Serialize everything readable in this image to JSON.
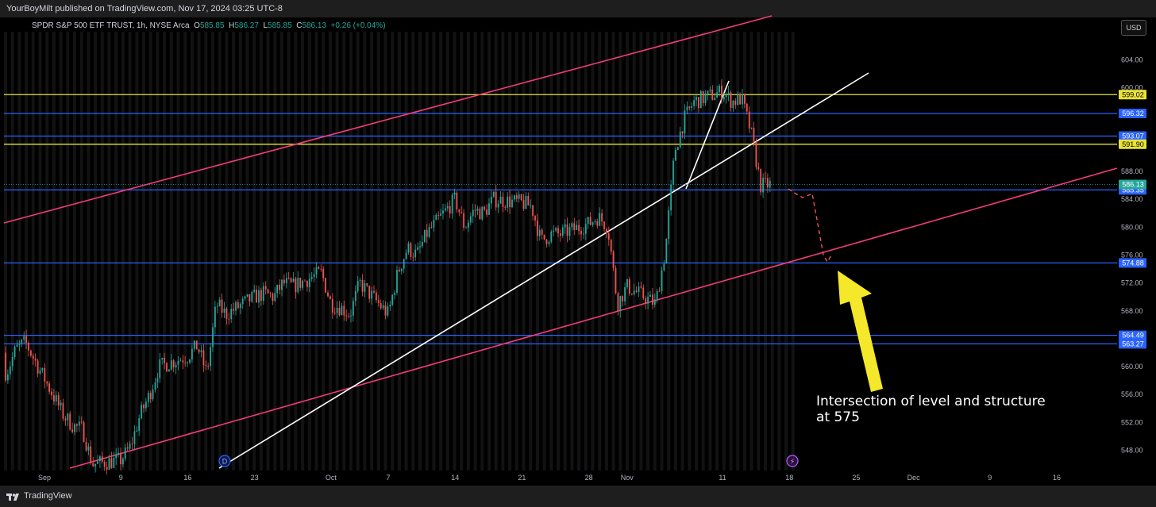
{
  "header": {
    "publisher_text": "YourBoyMilt published on TradingView.com, Nov 17, 2024 03:25 UTC-8"
  },
  "legend": {
    "symbol": "SPDR S&P 500 ETF TRUST, 1h, NYSE Arca",
    "open_label": "O",
    "open": "585.85",
    "high_label": "H",
    "high": "586.27",
    "low_label": "L",
    "low": "585.85",
    "close_label": "C",
    "close": "586.13",
    "change": "+0.26 (+0.04%)"
  },
  "currency_button": "USD",
  "footer": {
    "brand": "TradingView"
  },
  "badges": {
    "dividend": "D",
    "event": "⚡"
  },
  "colors": {
    "background": "#000000",
    "up": "#26a69a",
    "down": "#ef5350",
    "blue_level": "#2962ff",
    "yellow_level": "#e8e337",
    "channel": "#f23c78",
    "trendline": "#ffffff",
    "arrow": "#f5e82a",
    "projection": "#ef5350"
  },
  "chart_data": {
    "type": "candlestick",
    "symbol": "SPY",
    "timeframe": "1h",
    "y_ticks": [
      "548.00",
      "552.00",
      "556.00",
      "560.00",
      "564.00",
      "568.00",
      "572.00",
      "576.00",
      "580.00",
      "584.00",
      "588.00",
      "592.00",
      "596.00",
      "600.00",
      "604.00"
    ],
    "ylim": [
      545.5,
      607.8
    ],
    "x_ticks": [
      {
        "label": "Sep",
        "date": "2024-09-01"
      },
      {
        "label": "9",
        "date": "2024-09-09"
      },
      {
        "label": "16",
        "date": "2024-09-16"
      },
      {
        "label": "23",
        "date": "2024-09-23"
      },
      {
        "label": "Oct",
        "date": "2024-10-01"
      },
      {
        "label": "7",
        "date": "2024-10-07"
      },
      {
        "label": "14",
        "date": "2024-10-14"
      },
      {
        "label": "21",
        "date": "2024-10-21"
      },
      {
        "label": "28",
        "date": "2024-10-28"
      },
      {
        "label": "Nov",
        "date": "2024-11-01"
      },
      {
        "label": "11",
        "date": "2024-11-11"
      },
      {
        "label": "18",
        "date": "2024-11-18"
      },
      {
        "label": "25",
        "date": "2024-11-25"
      },
      {
        "label": "Dec",
        "date": "2024-12-01"
      },
      {
        "label": "9",
        "date": "2024-12-09"
      },
      {
        "label": "16",
        "date": "2024-12-16"
      }
    ],
    "price_path": [
      [
        "2024-08-27",
        562.0
      ],
      [
        "2024-08-28",
        559.0
      ],
      [
        "2024-08-29",
        562.5
      ],
      [
        "2024-08-30",
        563.5
      ],
      [
        "2024-09-03",
        553.0
      ],
      [
        "2024-09-04",
        551.5
      ],
      [
        "2024-09-05",
        551.0
      ],
      [
        "2024-09-06",
        546.0
      ],
      [
        "2024-09-09",
        546.6
      ],
      [
        "2024-09-10",
        548.5
      ],
      [
        "2024-09-11",
        553.0
      ],
      [
        "2024-09-12",
        556.0
      ],
      [
        "2024-09-13",
        560.0
      ],
      [
        "2024-09-16",
        561.5
      ],
      [
        "2024-09-17",
        563.0
      ],
      [
        "2024-09-18",
        559.0
      ],
      [
        "2024-09-19",
        569.0
      ],
      [
        "2024-09-20",
        567.5
      ],
      [
        "2024-09-23",
        570.0
      ],
      [
        "2024-09-24",
        570.5
      ],
      [
        "2024-09-25",
        570.0
      ],
      [
        "2024-09-26",
        572.0
      ],
      [
        "2024-09-27",
        571.5
      ],
      [
        "2024-09-30",
        573.5
      ],
      [
        "2024-10-01",
        569.0
      ],
      [
        "2024-10-02",
        568.5
      ],
      [
        "2024-10-03",
        567.5
      ],
      [
        "2024-10-04",
        572.0
      ],
      [
        "2024-10-07",
        567.5
      ],
      [
        "2024-10-08",
        573.5
      ],
      [
        "2024-10-09",
        577.0
      ],
      [
        "2024-10-10",
        576.0
      ],
      [
        "2024-10-11",
        579.0
      ],
      [
        "2024-10-14",
        584.0
      ],
      [
        "2024-10-15",
        580.0
      ],
      [
        "2024-10-16",
        582.5
      ],
      [
        "2024-10-17",
        582.0
      ],
      [
        "2024-10-18",
        584.0
      ],
      [
        "2024-10-21",
        583.5
      ],
      [
        "2024-10-22",
        583.0
      ],
      [
        "2024-10-23",
        578.0
      ],
      [
        "2024-10-24",
        579.0
      ],
      [
        "2024-10-25",
        579.0
      ],
      [
        "2024-10-28",
        580.5
      ],
      [
        "2024-10-29",
        581.5
      ],
      [
        "2024-10-30",
        580.0
      ],
      [
        "2024-10-31",
        569.0
      ],
      [
        "2024-11-01",
        571.5
      ],
      [
        "2024-11-04",
        569.0
      ],
      [
        "2024-11-05",
        576.5
      ],
      [
        "2024-11-06",
        591.0
      ],
      [
        "2024-11-07",
        595.5
      ],
      [
        "2024-11-08",
        598.0
      ],
      [
        "2024-11-11",
        599.5
      ],
      [
        "2024-11-12",
        598.0
      ],
      [
        "2024-11-13",
        598.5
      ],
      [
        "2024-11-14",
        593.5
      ],
      [
        "2024-11-15",
        586.0
      ],
      [
        "2024-11-16",
        586.13
      ]
    ],
    "levels": [
      {
        "name": "599.02",
        "value": 599.02,
        "color": "yellow"
      },
      {
        "name": "596.32",
        "value": 596.32,
        "color": "blue"
      },
      {
        "name": "593.07",
        "value": 593.07,
        "color": "blue"
      },
      {
        "name": "591.90",
        "value": 591.9,
        "color": "yellow"
      },
      {
        "name": "585.35",
        "value": 585.35,
        "color": "blue"
      },
      {
        "name": "574.88",
        "value": 574.88,
        "color": "blue"
      },
      {
        "name": "564.49",
        "value": 564.49,
        "color": "blue"
      },
      {
        "name": "563.27",
        "value": 563.27,
        "color": "blue"
      }
    ],
    "last_price": "586.13",
    "annotation": [
      "Intersection of level and structure",
      "at 575"
    ]
  }
}
